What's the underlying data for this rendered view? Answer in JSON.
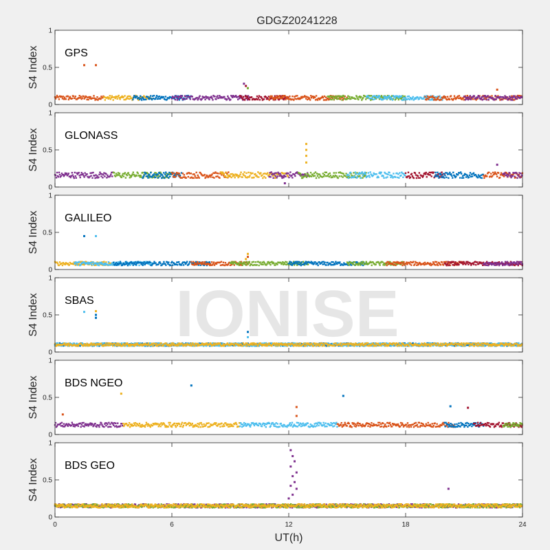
{
  "title": "GDGZ20241228",
  "watermark": "IONISE",
  "colors": [
    "#0072BD",
    "#D95319",
    "#EDB120",
    "#7E2F8E",
    "#77AC30",
    "#4DBEEE",
    "#A2142F"
  ],
  "chart_data": [
    {
      "type": "scatter",
      "panel": "GPS",
      "ylabel": "S4 Index",
      "xlabel": "",
      "xlim": [
        0,
        24
      ],
      "ylim": [
        0,
        1
      ],
      "yticks": [
        "0",
        "0.5",
        "1"
      ],
      "baseline": 0.09,
      "noise": 0.03,
      "segments": [
        [
          0,
          2.5,
          1
        ],
        [
          2.5,
          5,
          2
        ],
        [
          4,
          7,
          0
        ],
        [
          6,
          10,
          3
        ],
        [
          9.5,
          12,
          6
        ],
        [
          11,
          15,
          1
        ],
        [
          14,
          18,
          4
        ],
        [
          16,
          20,
          5
        ],
        [
          19,
          24,
          1
        ],
        [
          21,
          24,
          3
        ]
      ],
      "outliers": [
        [
          1.5,
          0.53,
          1
        ],
        [
          2.1,
          0.53,
          1
        ],
        [
          9.7,
          0.28,
          3
        ],
        [
          9.8,
          0.25,
          6
        ],
        [
          9.9,
          0.22,
          4
        ],
        [
          22.7,
          0.2,
          1
        ]
      ]
    },
    {
      "type": "scatter",
      "panel": "GLONASS",
      "ylabel": "S4 Index",
      "xlabel": "",
      "xlim": [
        0,
        24
      ],
      "ylim": [
        0,
        1
      ],
      "yticks": [
        "0",
        "0.5",
        "1"
      ],
      "baseline": 0.16,
      "noise": 0.04,
      "segments": [
        [
          0,
          3,
          3
        ],
        [
          3,
          6,
          4
        ],
        [
          4.5,
          6.5,
          0
        ],
        [
          6,
          9,
          1
        ],
        [
          8.5,
          12,
          2
        ],
        [
          11,
          13,
          3
        ],
        [
          12.5,
          16,
          4
        ],
        [
          15,
          18,
          5
        ],
        [
          18,
          20,
          6
        ],
        [
          19.5,
          22,
          0
        ],
        [
          22,
          24,
          1
        ],
        [
          23,
          24,
          3
        ]
      ],
      "outliers": [
        [
          12.9,
          0.58,
          2
        ],
        [
          12.9,
          0.5,
          2
        ],
        [
          12.9,
          0.42,
          2
        ],
        [
          12.9,
          0.33,
          2
        ],
        [
          22.7,
          0.3,
          3
        ],
        [
          11.8,
          0.05,
          3
        ]
      ]
    },
    {
      "type": "scatter",
      "panel": "GALILEO",
      "ylabel": "S4 Index",
      "xlabel": "",
      "xlim": [
        0,
        24
      ],
      "ylim": [
        0,
        1
      ],
      "yticks": [
        "0",
        "0.5",
        "1"
      ],
      "baseline": 0.08,
      "noise": 0.025,
      "segments": [
        [
          0,
          3,
          2
        ],
        [
          1,
          5,
          5
        ],
        [
          3,
          8,
          0
        ],
        [
          7,
          10,
          1
        ],
        [
          9,
          13,
          4
        ],
        [
          12,
          16,
          0
        ],
        [
          15,
          18,
          4
        ],
        [
          17,
          21,
          1
        ],
        [
          20,
          24,
          6
        ],
        [
          22,
          24,
          3
        ]
      ],
      "outliers": [
        [
          1.5,
          0.45,
          0
        ],
        [
          2.1,
          0.45,
          5
        ],
        [
          9.9,
          0.21,
          2
        ],
        [
          9.9,
          0.17,
          1
        ],
        [
          9.8,
          0.14,
          2
        ]
      ]
    },
    {
      "type": "scatter",
      "panel": "SBAS",
      "ylabel": "S4 Index",
      "xlabel": "",
      "xlim": [
        0,
        24
      ],
      "ylim": [
        0,
        1
      ],
      "yticks": [
        "0",
        "0.5",
        "1"
      ],
      "baseline": 0.1,
      "noise": 0.02,
      "segments": [
        [
          0,
          24,
          0
        ],
        [
          0,
          24,
          5
        ],
        [
          0,
          24,
          2
        ]
      ],
      "outliers": [
        [
          1.5,
          0.54,
          5
        ],
        [
          2.1,
          0.55,
          2
        ],
        [
          2.1,
          0.5,
          0
        ],
        [
          2.1,
          0.46,
          0
        ],
        [
          9.9,
          0.27,
          0
        ],
        [
          9.9,
          0.2,
          5
        ]
      ]
    },
    {
      "type": "scatter",
      "panel": "BDS NGEO",
      "ylabel": "S4 Index",
      "xlabel": "",
      "xlim": [
        0,
        24
      ],
      "ylim": [
        0,
        1
      ],
      "yticks": [
        "0",
        "0.5",
        "1"
      ],
      "baseline": 0.13,
      "noise": 0.03,
      "segments": [
        [
          0,
          3.5,
          3
        ],
        [
          3.5,
          6,
          2
        ],
        [
          6,
          9.5,
          2
        ],
        [
          9.5,
          12,
          5
        ],
        [
          12,
          14.5,
          5
        ],
        [
          14.5,
          18,
          1
        ],
        [
          18,
          20.5,
          1
        ],
        [
          20,
          22,
          0
        ],
        [
          21.5,
          24,
          6
        ],
        [
          23,
          24,
          4
        ]
      ],
      "outliers": [
        [
          0.4,
          0.27,
          1
        ],
        [
          3.4,
          0.55,
          2
        ],
        [
          7,
          0.66,
          0
        ],
        [
          12.4,
          0.37,
          1
        ],
        [
          12.4,
          0.25,
          1
        ],
        [
          14.8,
          0.52,
          0
        ],
        [
          20.3,
          0.38,
          0
        ],
        [
          21.2,
          0.36,
          6
        ]
      ]
    },
    {
      "type": "scatter",
      "panel": "BDS GEO",
      "ylabel": "S4 Index",
      "xlabel": "UT(h)",
      "xlim": [
        0,
        24
      ],
      "ylim": [
        0,
        1
      ],
      "yticks": [
        "0",
        "0.5",
        "1"
      ],
      "xticks": [
        "0",
        "6",
        "12",
        "18",
        "24"
      ],
      "baseline": 0.15,
      "noise": 0.025,
      "segments": [
        [
          0,
          24,
          3
        ],
        [
          0,
          24,
          4
        ],
        [
          0,
          24,
          2
        ]
      ],
      "outliers": [
        [
          12.1,
          0.9,
          3
        ],
        [
          12.2,
          0.82,
          3
        ],
        [
          12.3,
          0.75,
          3
        ],
        [
          12.1,
          0.68,
          3
        ],
        [
          12.4,
          0.6,
          3
        ],
        [
          12.2,
          0.55,
          3
        ],
        [
          12.3,
          0.47,
          3
        ],
        [
          12.1,
          0.42,
          3
        ],
        [
          12.4,
          0.38,
          3
        ],
        [
          12.2,
          0.3,
          3
        ],
        [
          12,
          0.25,
          3
        ],
        [
          20.2,
          0.38,
          3
        ]
      ]
    }
  ]
}
